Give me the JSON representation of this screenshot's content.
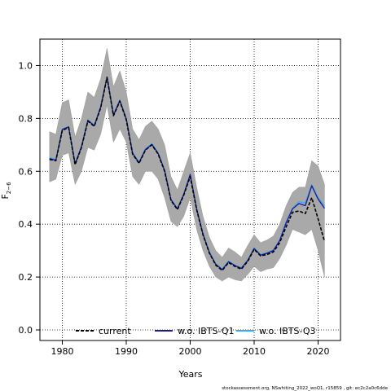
{
  "chart_data": {
    "type": "line",
    "xlabel": "Years",
    "ylabel": {
      "base": "F",
      "sub": "2−6"
    },
    "xlim": [
      1976.5,
      2023.5
    ],
    "ylim": [
      -0.04,
      1.1
    ],
    "xticks": [
      1980,
      1990,
      2000,
      2010,
      2020
    ],
    "yticks": [
      0.0,
      0.2,
      0.4,
      0.6,
      0.8,
      1.0
    ],
    "ytick_labels": [
      "0.0",
      "0.2",
      "0.4",
      "0.6",
      "0.8",
      "1.0"
    ],
    "grid": true,
    "legend_position": "bottom",
    "x": [
      1978,
      1979,
      1980,
      1981,
      1982,
      1983,
      1984,
      1985,
      1986,
      1987,
      1988,
      1989,
      1990,
      1991,
      1992,
      1993,
      1994,
      1995,
      1996,
      1997,
      1998,
      1999,
      2000,
      2001,
      2002,
      2003,
      2004,
      2005,
      2006,
      2007,
      2008,
      2009,
      2010,
      2011,
      2012,
      2013,
      2014,
      2015,
      2016,
      2017,
      2018,
      2019,
      2020,
      2021
    ],
    "series": [
      {
        "name": "current",
        "color": "#000000",
        "dash": "4,2",
        "values": [
          0.645,
          0.64,
          0.755,
          0.765,
          0.625,
          0.69,
          0.79,
          0.77,
          0.84,
          0.955,
          0.81,
          0.865,
          0.795,
          0.665,
          0.63,
          0.68,
          0.7,
          0.665,
          0.6,
          0.49,
          0.455,
          0.51,
          0.58,
          0.455,
          0.36,
          0.29,
          0.245,
          0.225,
          0.255,
          0.24,
          0.23,
          0.26,
          0.305,
          0.28,
          0.285,
          0.295,
          0.33,
          0.39,
          0.445,
          0.45,
          0.44,
          0.5,
          0.42,
          0.335
        ],
        "ci_lower": [
          0.56,
          0.57,
          0.66,
          0.67,
          0.55,
          0.6,
          0.69,
          0.68,
          0.74,
          0.85,
          0.71,
          0.76,
          0.71,
          0.58,
          0.55,
          0.6,
          0.6,
          0.57,
          0.5,
          0.41,
          0.39,
          0.43,
          0.5,
          0.38,
          0.3,
          0.24,
          0.2,
          0.185,
          0.2,
          0.19,
          0.185,
          0.21,
          0.24,
          0.22,
          0.23,
          0.235,
          0.27,
          0.32,
          0.38,
          0.37,
          0.36,
          0.38,
          0.3,
          0.2
        ],
        "ci_upper": [
          0.75,
          0.74,
          0.86,
          0.87,
          0.73,
          0.8,
          0.9,
          0.88,
          0.95,
          1.065,
          0.92,
          0.98,
          0.9,
          0.76,
          0.72,
          0.77,
          0.79,
          0.76,
          0.7,
          0.58,
          0.53,
          0.6,
          0.67,
          0.54,
          0.43,
          0.35,
          0.3,
          0.275,
          0.31,
          0.295,
          0.275,
          0.32,
          0.36,
          0.33,
          0.34,
          0.355,
          0.4,
          0.47,
          0.52,
          0.54,
          0.54,
          0.64,
          0.62,
          0.55
        ]
      },
      {
        "name": "w.o. IBTS-Q1",
        "color": "#1f1a8a",
        "dash": "",
        "values": [
          0.648,
          0.642,
          0.758,
          0.768,
          0.628,
          0.692,
          0.793,
          0.772,
          0.843,
          0.957,
          0.812,
          0.868,
          0.798,
          0.668,
          0.632,
          0.682,
          0.702,
          0.667,
          0.603,
          0.492,
          0.458,
          0.513,
          0.588,
          0.458,
          0.362,
          0.292,
          0.248,
          0.228,
          0.258,
          0.243,
          0.233,
          0.263,
          0.308,
          0.283,
          0.29,
          0.3,
          0.338,
          0.405,
          0.458,
          0.478,
          0.47,
          0.545,
          0.495,
          0.46
        ]
      },
      {
        "name": "w.o. IBTS-Q3",
        "color": "#3aa6ff",
        "dash": "",
        "values": [
          0.652,
          0.645,
          0.76,
          0.77,
          0.63,
          0.695,
          0.795,
          0.775,
          0.845,
          0.958,
          0.815,
          0.87,
          0.8,
          0.67,
          0.635,
          0.685,
          0.705,
          0.67,
          0.605,
          0.495,
          0.46,
          0.515,
          0.59,
          0.46,
          0.365,
          0.295,
          0.25,
          0.23,
          0.26,
          0.245,
          0.235,
          0.265,
          0.31,
          0.285,
          0.292,
          0.302,
          0.34,
          0.41,
          0.46,
          0.485,
          0.48,
          0.55,
          0.5,
          0.47
        ]
      }
    ]
  },
  "footer_text": "stockassessment.org, NSwhiting_2022_woQ1, r15859 , git: ec2c2a0c6dde"
}
